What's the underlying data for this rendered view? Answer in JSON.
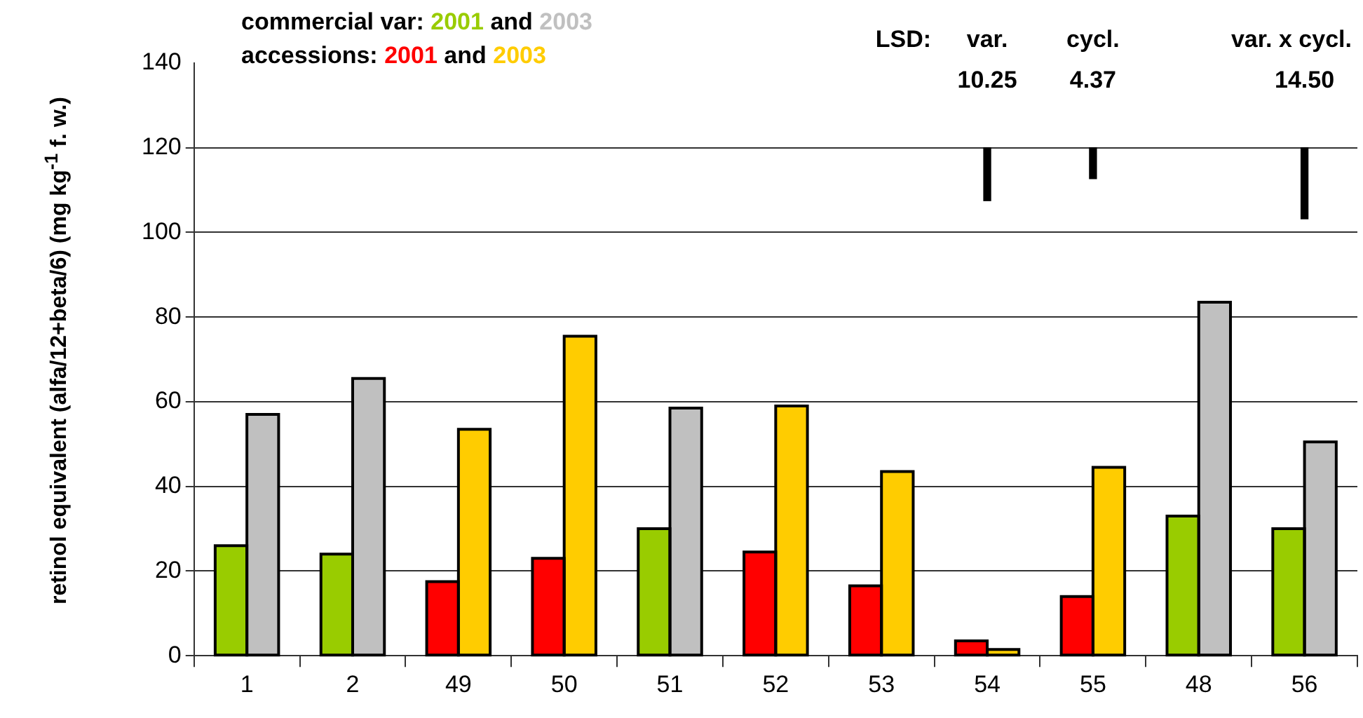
{
  "chart_data": {
    "type": "bar",
    "ylabel": "retinol equivalent (alfa/12+beta/6) (mg kg$^{-1}$ f. w.)",
    "categories": [
      "1",
      "2",
      "49",
      "50",
      "51",
      "52",
      "53",
      "54",
      "55",
      "48",
      "56"
    ],
    "series": [
      {
        "name": "2001",
        "color": "#ff0000",
        "values": [
          null,
          null,
          17.5,
          23,
          null,
          24.5,
          16.5,
          3.5,
          14,
          null,
          null
        ]
      },
      {
        "name": "2003",
        "color": "#ffcc00",
        "values": [
          null,
          null,
          53.5,
          75.5,
          null,
          59,
          43.5,
          1.5,
          44.5,
          null,
          null
        ]
      },
      {
        "name": "2001",
        "color": "#99cc00",
        "values": [
          26,
          24,
          null,
          null,
          30,
          null,
          null,
          null,
          null,
          33,
          30
        ]
      },
      {
        "name": "2003",
        "color": "#c0c0c0",
        "values": [
          57,
          65.5,
          null,
          null,
          58.5,
          null,
          null,
          null,
          null,
          83.5,
          50.5
        ]
      },
      {
        "color": "#000000",
        "x": [
          "54",
          "55",
          "56"
        ],
        "base": [
          107.5,
          112.7,
          103.2
        ],
        "values": [
          12.5,
          7.3,
          16.8
        ]
      }
    ],
    "ylim": [
      0,
      140
    ],
    "yticks": [
      0,
      20,
      40,
      60,
      80,
      100,
      120,
      140
    ],
    "grid": "y",
    "legend": "top left",
    "annotations": [
      "accessions:",
      "and",
      "commercial var:",
      "and",
      "LSD:",
      "var.",
      "10.25",
      "cycl.",
      "4.37",
      "var. x cycl.",
      "14.50"
    ]
  }
}
